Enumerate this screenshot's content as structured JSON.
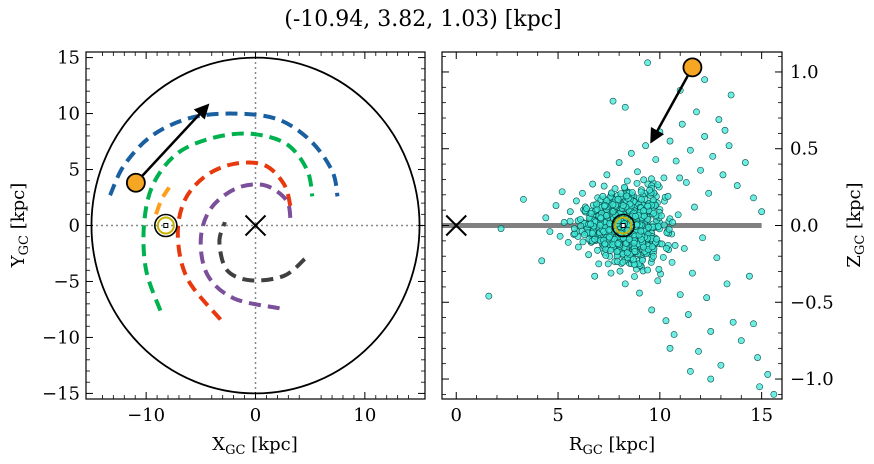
{
  "figure": {
    "title": "(-10.94, 3.82, 1.03) [kpc]"
  },
  "chart_data": [
    {
      "type": "line",
      "panel": "left",
      "xlabel_main": "X",
      "xlabel_sub": "GC",
      "xlabel_unit": " [kpc]",
      "ylabel_main": "Y",
      "ylabel_sub": "GC",
      "ylabel_unit": " [kpc]",
      "xlim": [
        -15.5,
        15.5
      ],
      "ylim": [
        -15.5,
        15.5
      ],
      "xticks": [
        -10,
        0,
        10
      ],
      "xtick_labels": [
        "−10",
        "0",
        "10"
      ],
      "yticks": [
        -15,
        -10,
        -5,
        0,
        5,
        10,
        15
      ],
      "ytick_labels": [
        "−15",
        "−10",
        "−5",
        "0",
        "5",
        "10",
        "15"
      ],
      "reference_lines": {
        "x": 0,
        "y": 0,
        "style": "dotted",
        "color": "#888888"
      },
      "boundary_circle": {
        "radius": 15,
        "color": "#000000"
      },
      "spiral_arms": [
        {
          "color": "#1a5fa0",
          "points": [
            [
              -13.3,
              2.7
            ],
            [
              -12.0,
              5.4
            ],
            [
              -9.5,
              8.0
            ],
            [
              -6.0,
              9.6
            ],
            [
              -2.0,
              10.0
            ],
            [
              2.0,
              9.5
            ],
            [
              5.0,
              7.6
            ],
            [
              7.0,
              4.9
            ],
            [
              7.5,
              2.6
            ]
          ]
        },
        {
          "color": "#00b14f",
          "points": [
            [
              -8.7,
              -7.6
            ],
            [
              -10.0,
              -4.0
            ],
            [
              -10.2,
              0.0
            ],
            [
              -9.4,
              3.6
            ],
            [
              -7.2,
              6.4
            ],
            [
              -4.0,
              7.8
            ],
            [
              -0.5,
              8.2
            ],
            [
              2.8,
              7.3
            ],
            [
              4.7,
              5.0
            ],
            [
              5.2,
              2.6
            ]
          ]
        },
        {
          "color": "#ff9e1b",
          "points": [
            [
              -9.1,
              1.0
            ],
            [
              -8.6,
              2.3
            ],
            [
              -7.9,
              3.4
            ]
          ]
        },
        {
          "color": "#e8380d",
          "points": [
            [
              -3.2,
              -8.4
            ],
            [
              -6.2,
              -4.8
            ],
            [
              -7.1,
              -1.0
            ],
            [
              -6.5,
              2.2
            ],
            [
              -4.6,
              4.4
            ],
            [
              -2.0,
              5.5
            ],
            [
              0.8,
              5.4
            ],
            [
              2.6,
              3.7
            ],
            [
              3.2,
              1.7
            ]
          ]
        },
        {
          "color": "#7b4f9a",
          "points": [
            [
              2.2,
              -7.4
            ],
            [
              -2.0,
              -6.5
            ],
            [
              -4.4,
              -4.4
            ],
            [
              -5.0,
              -1.2
            ],
            [
              -4.1,
              1.5
            ],
            [
              -1.8,
              3.3
            ],
            [
              0.8,
              3.6
            ],
            [
              2.8,
              2.3
            ],
            [
              3.2,
              0.6
            ]
          ]
        },
        {
          "color": "#404040",
          "points": [
            [
              4.5,
              -3.0
            ],
            [
              2.6,
              -4.5
            ],
            [
              -0.4,
              -4.9
            ],
            [
              -2.6,
              -4.0
            ],
            [
              -3.3,
              -1.5
            ],
            [
              -2.8,
              0.3
            ]
          ]
        }
      ],
      "galactic_center_marker": {
        "x": 0,
        "y": 0,
        "symbol": "x"
      },
      "sun": {
        "x": -8.2,
        "y": 0.0,
        "symbol": "sun"
      },
      "object": {
        "x": -10.94,
        "y": 3.82,
        "color": "#f5a623"
      },
      "velocity_arrow": {
        "x0": -10.94,
        "y0": 3.82,
        "x1": -4.4,
        "y1": 10.7
      }
    },
    {
      "type": "scatter",
      "panel": "right",
      "xlabel_main": "R",
      "xlabel_sub": "GC",
      "xlabel_unit": " [kpc]",
      "ylabel_main": "Z",
      "ylabel_sub": "GC",
      "ylabel_unit": " [kpc]",
      "xlim": [
        -0.7,
        16.0
      ],
      "ylim": [
        -1.13,
        1.13
      ],
      "xticks": [
        0,
        5,
        10,
        15
      ],
      "xtick_labels": [
        "0",
        "5",
        "10",
        "15"
      ],
      "yticks": [
        -1.0,
        -0.5,
        0.0,
        0.5,
        1.0
      ],
      "ytick_labels": [
        "−1.0",
        "−0.5",
        "0.0",
        "0.5",
        "1.0"
      ],
      "point_color": "#3ee8d8",
      "disk_line": {
        "x0": -0.7,
        "x1": 15.0,
        "y": 0.0,
        "color": "#808080"
      },
      "galactic_center_marker": {
        "x": 0,
        "y": 0,
        "symbol": "x"
      },
      "sun": {
        "x": 8.2,
        "y": 0.0,
        "symbol": "sun"
      },
      "object": {
        "x": 11.6,
        "y": 1.03,
        "color": "#f5a623"
      },
      "velocity_arrow": {
        "x0": 11.6,
        "y0": 1.03,
        "x1": 9.6,
        "y1": 0.55
      },
      "points": [
        [
          1.6,
          -0.46
        ],
        [
          2.2,
          -0.02
        ],
        [
          3.3,
          0.17
        ],
        [
          4.2,
          -0.23
        ],
        [
          4.4,
          0.05
        ],
        [
          4.6,
          -0.04
        ],
        [
          4.9,
          0.13
        ],
        [
          5.1,
          -0.07
        ],
        [
          5.3,
          0.02
        ],
        [
          5.5,
          -0.11
        ],
        [
          5.6,
          0.09
        ],
        [
          5.8,
          -0.02
        ],
        [
          5.9,
          0.16
        ],
        [
          6.0,
          -0.14
        ],
        [
          6.1,
          0.04
        ],
        [
          6.2,
          0.21
        ],
        [
          6.3,
          -0.06
        ],
        [
          6.4,
          0.11
        ],
        [
          6.5,
          -0.19
        ],
        [
          6.6,
          0.01
        ],
        [
          6.7,
          0.27
        ],
        [
          6.8,
          -0.09
        ],
        [
          6.9,
          0.14
        ],
        [
          7.0,
          -0.25
        ],
        [
          7.1,
          0.05
        ],
        [
          7.2,
          0.19
        ],
        [
          7.3,
          -0.12
        ],
        [
          7.4,
          0.33
        ],
        [
          7.5,
          -0.03
        ],
        [
          7.6,
          -0.31
        ],
        [
          7.7,
          0.09
        ],
        [
          7.8,
          0.24
        ],
        [
          7.9,
          -0.17
        ],
        [
          8.0,
          0.41
        ],
        [
          8.1,
          -0.05
        ],
        [
          8.2,
          0.13
        ],
        [
          8.3,
          -0.38
        ],
        [
          8.4,
          0.29
        ],
        [
          8.5,
          -0.09
        ],
        [
          8.6,
          0.47
        ],
        [
          8.7,
          -0.22
        ],
        [
          8.8,
          0.06
        ],
        [
          8.9,
          0.35
        ],
        [
          9.0,
          -0.44
        ],
        [
          9.1,
          0.17
        ],
        [
          9.2,
          -0.14
        ],
        [
          9.3,
          0.52
        ],
        [
          9.4,
          -0.29
        ],
        [
          9.5,
          0.23
        ],
        [
          9.6,
          -0.55
        ],
        [
          9.7,
          0.08
        ],
        [
          9.8,
          0.43
        ],
        [
          9.9,
          -0.36
        ],
        [
          10.0,
          0.61
        ],
        [
          10.1,
          -0.12
        ],
        [
          10.2,
          0.31
        ],
        [
          10.3,
          -0.62
        ],
        [
          10.4,
          0.19
        ],
        [
          10.5,
          0.55
        ],
        [
          10.6,
          -0.24
        ],
        [
          10.7,
          -0.71
        ],
        [
          10.8,
          0.42
        ],
        [
          10.9,
          0.07
        ],
        [
          11.0,
          -0.45
        ],
        [
          11.1,
          0.66
        ],
        [
          11.2,
          -0.15
        ],
        [
          11.3,
          0.28
        ],
        [
          11.4,
          -0.58
        ],
        [
          11.5,
          0.49
        ],
        [
          11.6,
          -0.31
        ],
        [
          11.7,
          0.12
        ],
        [
          11.8,
          0.74
        ],
        [
          11.9,
          -0.82
        ],
        [
          12.0,
          0.36
        ],
        [
          12.1,
          -0.08
        ],
        [
          12.2,
          0.58
        ],
        [
          12.3,
          -0.47
        ],
        [
          12.4,
          0.21
        ],
        [
          12.5,
          -0.69
        ],
        [
          12.6,
          0.45
        ],
        [
          12.8,
          -0.21
        ],
        [
          12.9,
          0.69
        ],
        [
          13.0,
          -0.91
        ],
        [
          13.1,
          0.33
        ],
        [
          13.3,
          -0.38
        ],
        [
          13.4,
          0.52
        ],
        [
          13.6,
          -0.63
        ],
        [
          13.8,
          0.26
        ],
        [
          14.0,
          -0.75
        ],
        [
          14.2,
          0.41
        ],
        [
          14.4,
          -0.33
        ],
        [
          14.6,
          0.18
        ],
        [
          14.8,
          -0.86
        ],
        [
          15.0,
          0.09
        ],
        [
          15.3,
          -0.97
        ],
        [
          15.6,
          -1.1
        ],
        [
          13.5,
          0.85
        ],
        [
          12.5,
          -1.0
        ],
        [
          11.5,
          -0.95
        ],
        [
          8.3,
          0.77
        ],
        [
          9.4,
          1.06
        ],
        [
          7.7,
          0.81
        ],
        [
          14.9,
          -1.05
        ],
        [
          10.5,
          -0.8
        ],
        [
          6.8,
          -0.33
        ],
        [
          5.2,
          0.22
        ],
        [
          12.2,
          0.95
        ],
        [
          11.0,
          0.88
        ],
        [
          13.2,
          0.62
        ],
        [
          14.6,
          -0.64
        ]
      ]
    }
  ]
}
